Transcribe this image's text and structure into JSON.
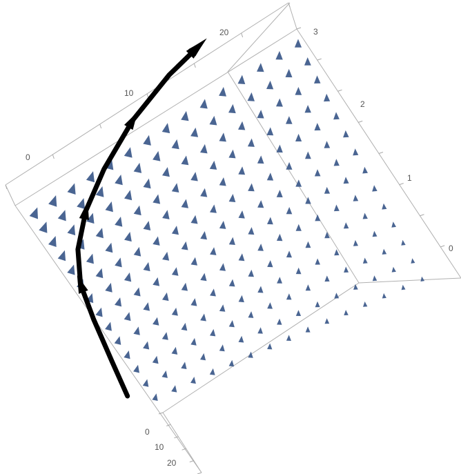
{
  "chart_data": {
    "type": "vector-field-3d",
    "title": "",
    "axes": {
      "back": {
        "ticks": [
          "0",
          "10",
          "20"
        ],
        "range": [
          -5,
          25
        ]
      },
      "right": {
        "ticks": [
          "0",
          "1",
          "2",
          "3"
        ],
        "range": [
          -0.5,
          3
        ]
      },
      "front": {
        "ticks": [
          "0",
          "10",
          "20"
        ],
        "range": [
          -2,
          22
        ]
      }
    },
    "field": {
      "rows": 14,
      "cols": 15,
      "color": "#4a6592"
    },
    "trajectory": {
      "color": "#000000",
      "points": [
        [
          0.33,
          0.0
        ],
        [
          0.27,
          0.1
        ],
        [
          0.2,
          0.22
        ],
        [
          0.15,
          0.32
        ],
        [
          0.14,
          0.42
        ],
        [
          0.17,
          0.53
        ],
        [
          0.24,
          0.65
        ],
        [
          0.35,
          0.79
        ],
        [
          0.49,
          0.92
        ],
        [
          0.6,
          1.0
        ]
      ]
    },
    "colors": {
      "background": "#ffffff",
      "frame": "#b0b0b0",
      "arrow": "#4a6592",
      "trajectory": "#000000"
    }
  }
}
